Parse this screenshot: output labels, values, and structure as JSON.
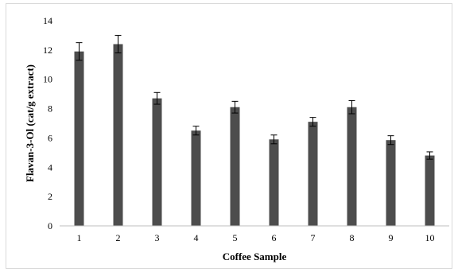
{
  "chart_data": {
    "type": "bar",
    "title": "",
    "xlabel": "Coffee Sample",
    "ylabel": "Flavan-3-Ol (cat/g extract)",
    "categories": [
      "1",
      "2",
      "3",
      "4",
      "5",
      "6",
      "7",
      "8",
      "9",
      "10"
    ],
    "values": [
      11.9,
      12.4,
      8.7,
      6.5,
      8.1,
      5.9,
      7.1,
      8.1,
      5.85,
      4.8
    ],
    "errors": [
      0.6,
      0.6,
      0.4,
      0.3,
      0.4,
      0.3,
      0.3,
      0.45,
      0.3,
      0.25
    ],
    "yticks": [
      "0",
      "2",
      "4",
      "6",
      "8",
      "10",
      "12",
      "14"
    ],
    "ylim": [
      0,
      14
    ],
    "grid": false,
    "legend": "none",
    "bar_color": "#4d4d4d",
    "error_bar_color": "#000000"
  }
}
